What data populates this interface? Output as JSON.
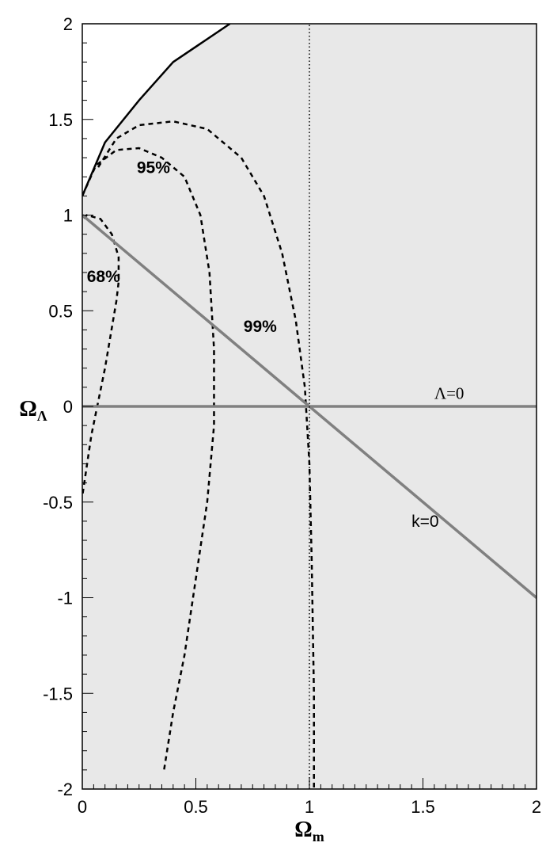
{
  "chart_data": {
    "type": "line",
    "title": "",
    "xlabel": "Ωm",
    "ylabel": "ΩΛ",
    "xlim": [
      0,
      2
    ],
    "ylim": [
      -2,
      2
    ],
    "xticks": [
      "0",
      "0.5",
      "1",
      "1.5",
      "2"
    ],
    "yticks": [
      "-2",
      "-1.5",
      "-1",
      "-0.5",
      "0",
      "0.5",
      "1",
      "1.5",
      "2"
    ],
    "grid": false,
    "shaded_region_color": "#e8e8e8",
    "series": [
      {
        "style": "solid-black",
        "x": [
          0,
          0.1,
          0.25,
          0.4,
          0.65
        ],
        "y": [
          1.1,
          1.38,
          1.6,
          1.8,
          2.0
        ]
      },
      {
        "style": "dashed-black",
        "x": [
          -0.02,
          0.02,
          0.08,
          0.13,
          0.16,
          0.16,
          0.15,
          0.1,
          0.04,
          0
        ],
        "y": [
          0.95,
          1.0,
          0.98,
          0.9,
          0.78,
          0.65,
          0.55,
          0.2,
          -0.15,
          -0.47
        ]
      },
      {
        "style": "dashed-black",
        "x": [
          0,
          0.06,
          0.15,
          0.25,
          0.35,
          0.45,
          0.52,
          0.56,
          0.58,
          0.58,
          0.55,
          0.5,
          0.45,
          0.4,
          0.36
        ],
        "y": [
          1.1,
          1.26,
          1.34,
          1.35,
          1.3,
          1.2,
          1.0,
          0.7,
          0.3,
          -0.1,
          -0.5,
          -0.9,
          -1.3,
          -1.6,
          -1.9
        ]
      },
      {
        "style": "dashed-black",
        "x": [
          0.07,
          0.15,
          0.25,
          0.4,
          0.55,
          0.7,
          0.8,
          0.88,
          0.94,
          0.98,
          1.0,
          1.01,
          1.02,
          1.02
        ],
        "y": [
          1.25,
          1.4,
          1.47,
          1.49,
          1.45,
          1.3,
          1.1,
          0.8,
          0.45,
          0.1,
          -0.3,
          -0.8,
          -1.5,
          -2.0
        ]
      },
      {
        "name": "k=0",
        "style": "solid-gray",
        "x": [
          0,
          2
        ],
        "y": [
          1,
          -1
        ]
      },
      {
        "name": "Λ=0",
        "style": "solid-gray",
        "x": [
          0,
          2
        ],
        "y": [
          0,
          0
        ]
      },
      {
        "style": "dotted-black",
        "x": [
          1,
          1
        ],
        "y": [
          -2,
          2
        ]
      }
    ],
    "annotations": [
      {
        "text": "68%",
        "x": 0.02,
        "y": 0.65,
        "style": "bold"
      },
      {
        "text": "95%",
        "x": 0.24,
        "y": 1.22,
        "style": "bold"
      },
      {
        "text": "99%",
        "x": 0.71,
        "y": 0.39,
        "style": "bold"
      },
      {
        "text": "k=0",
        "x": 1.45,
        "y": -0.63,
        "style": "normal"
      },
      {
        "text": "Λ=0",
        "x": 1.55,
        "y": 0.04,
        "style": "serif"
      }
    ]
  }
}
